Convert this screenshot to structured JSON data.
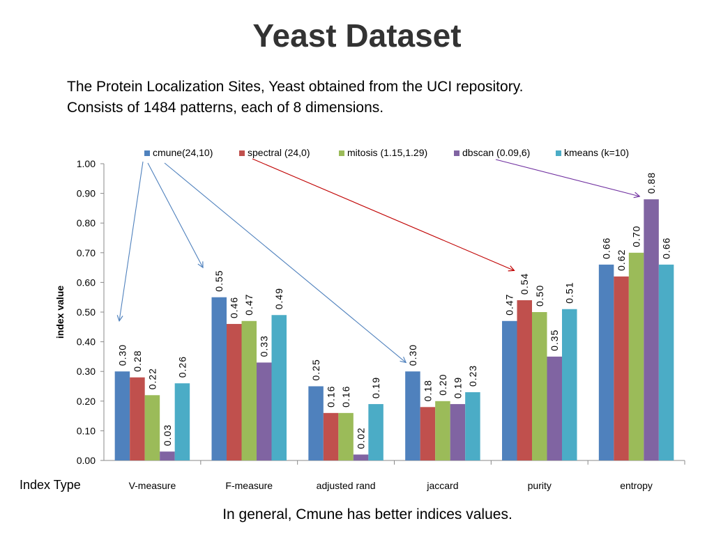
{
  "slide": {
    "title": "Yeast Dataset",
    "description_line1": "The Protein Localization Sites, Yeast obtained from the UCI repository.",
    "description_line2": "Consists of 1484 patterns, each of 8 dimensions.",
    "x_caption": "Index Type",
    "conclusion": "In general, Cmune has better indices values."
  },
  "chart_data": {
    "type": "bar",
    "title": "",
    "xlabel": "",
    "ylabel": "index value",
    "ylim": [
      0,
      1.0
    ],
    "yticks": [
      "0.00",
      "0.10",
      "0.20",
      "0.30",
      "0.40",
      "0.50",
      "0.60",
      "0.70",
      "0.80",
      "0.90",
      "1.00"
    ],
    "grid": false,
    "legend_position": "top",
    "categories": [
      "V-measure",
      "F-measure",
      "adjusted rand",
      "jaccard",
      "purity",
      "entropy"
    ],
    "series": [
      {
        "name": "cmune(24,10)",
        "color": "#4F81BD",
        "values": [
          0.3,
          0.55,
          0.25,
          0.3,
          0.47,
          0.66
        ],
        "labels": [
          "0.30",
          "0.55",
          "0.25",
          "0.30",
          "0.47",
          "0.66"
        ]
      },
      {
        "name": "spectral (24,0)",
        "color": "#C0504D",
        "values": [
          0.28,
          0.46,
          0.16,
          0.18,
          0.54,
          0.62
        ],
        "labels": [
          "0.28",
          "0.46",
          "0.16",
          "0.18",
          "0.54",
          "0.62"
        ]
      },
      {
        "name": "mitosis (1.15,1.29)",
        "color": "#9BBB59",
        "values": [
          0.22,
          0.47,
          0.16,
          0.2,
          0.5,
          0.7
        ],
        "labels": [
          "0.22",
          "0.47",
          "0.16",
          "0.20",
          "0.50",
          "0.70"
        ]
      },
      {
        "name": "dbscan (0.09,6)",
        "color": "#8064A2",
        "values": [
          0.03,
          0.33,
          0.02,
          0.19,
          0.35,
          0.88
        ],
        "labels": [
          "0.03",
          "0.33",
          "0.02",
          "0.19",
          "0.35",
          "0.88"
        ]
      },
      {
        "name": "kmeans (k=10)",
        "color": "#4BACC6",
        "values": [
          0.26,
          0.49,
          0.19,
          0.23,
          0.51,
          0.66
        ],
        "labels": [
          "0.26",
          "0.49",
          "0.19",
          "0.23",
          "0.51",
          "0.66"
        ]
      }
    ],
    "annotations": [
      {
        "from_series": "cmune(24,10)",
        "to_category": "V-measure",
        "color": "#4F81BD"
      },
      {
        "from_series": "cmune(24,10)",
        "to_category": "F-measure",
        "color": "#4F81BD"
      },
      {
        "from_series": "cmune(24,10)",
        "to_category": "jaccard",
        "color": "#4F81BD"
      },
      {
        "from_series": "spectral (24,0)",
        "to_category": "purity",
        "color": "#C00000"
      },
      {
        "from_series": "dbscan (0.09,6)",
        "to_category": "entropy",
        "color": "#7030A0"
      }
    ]
  }
}
